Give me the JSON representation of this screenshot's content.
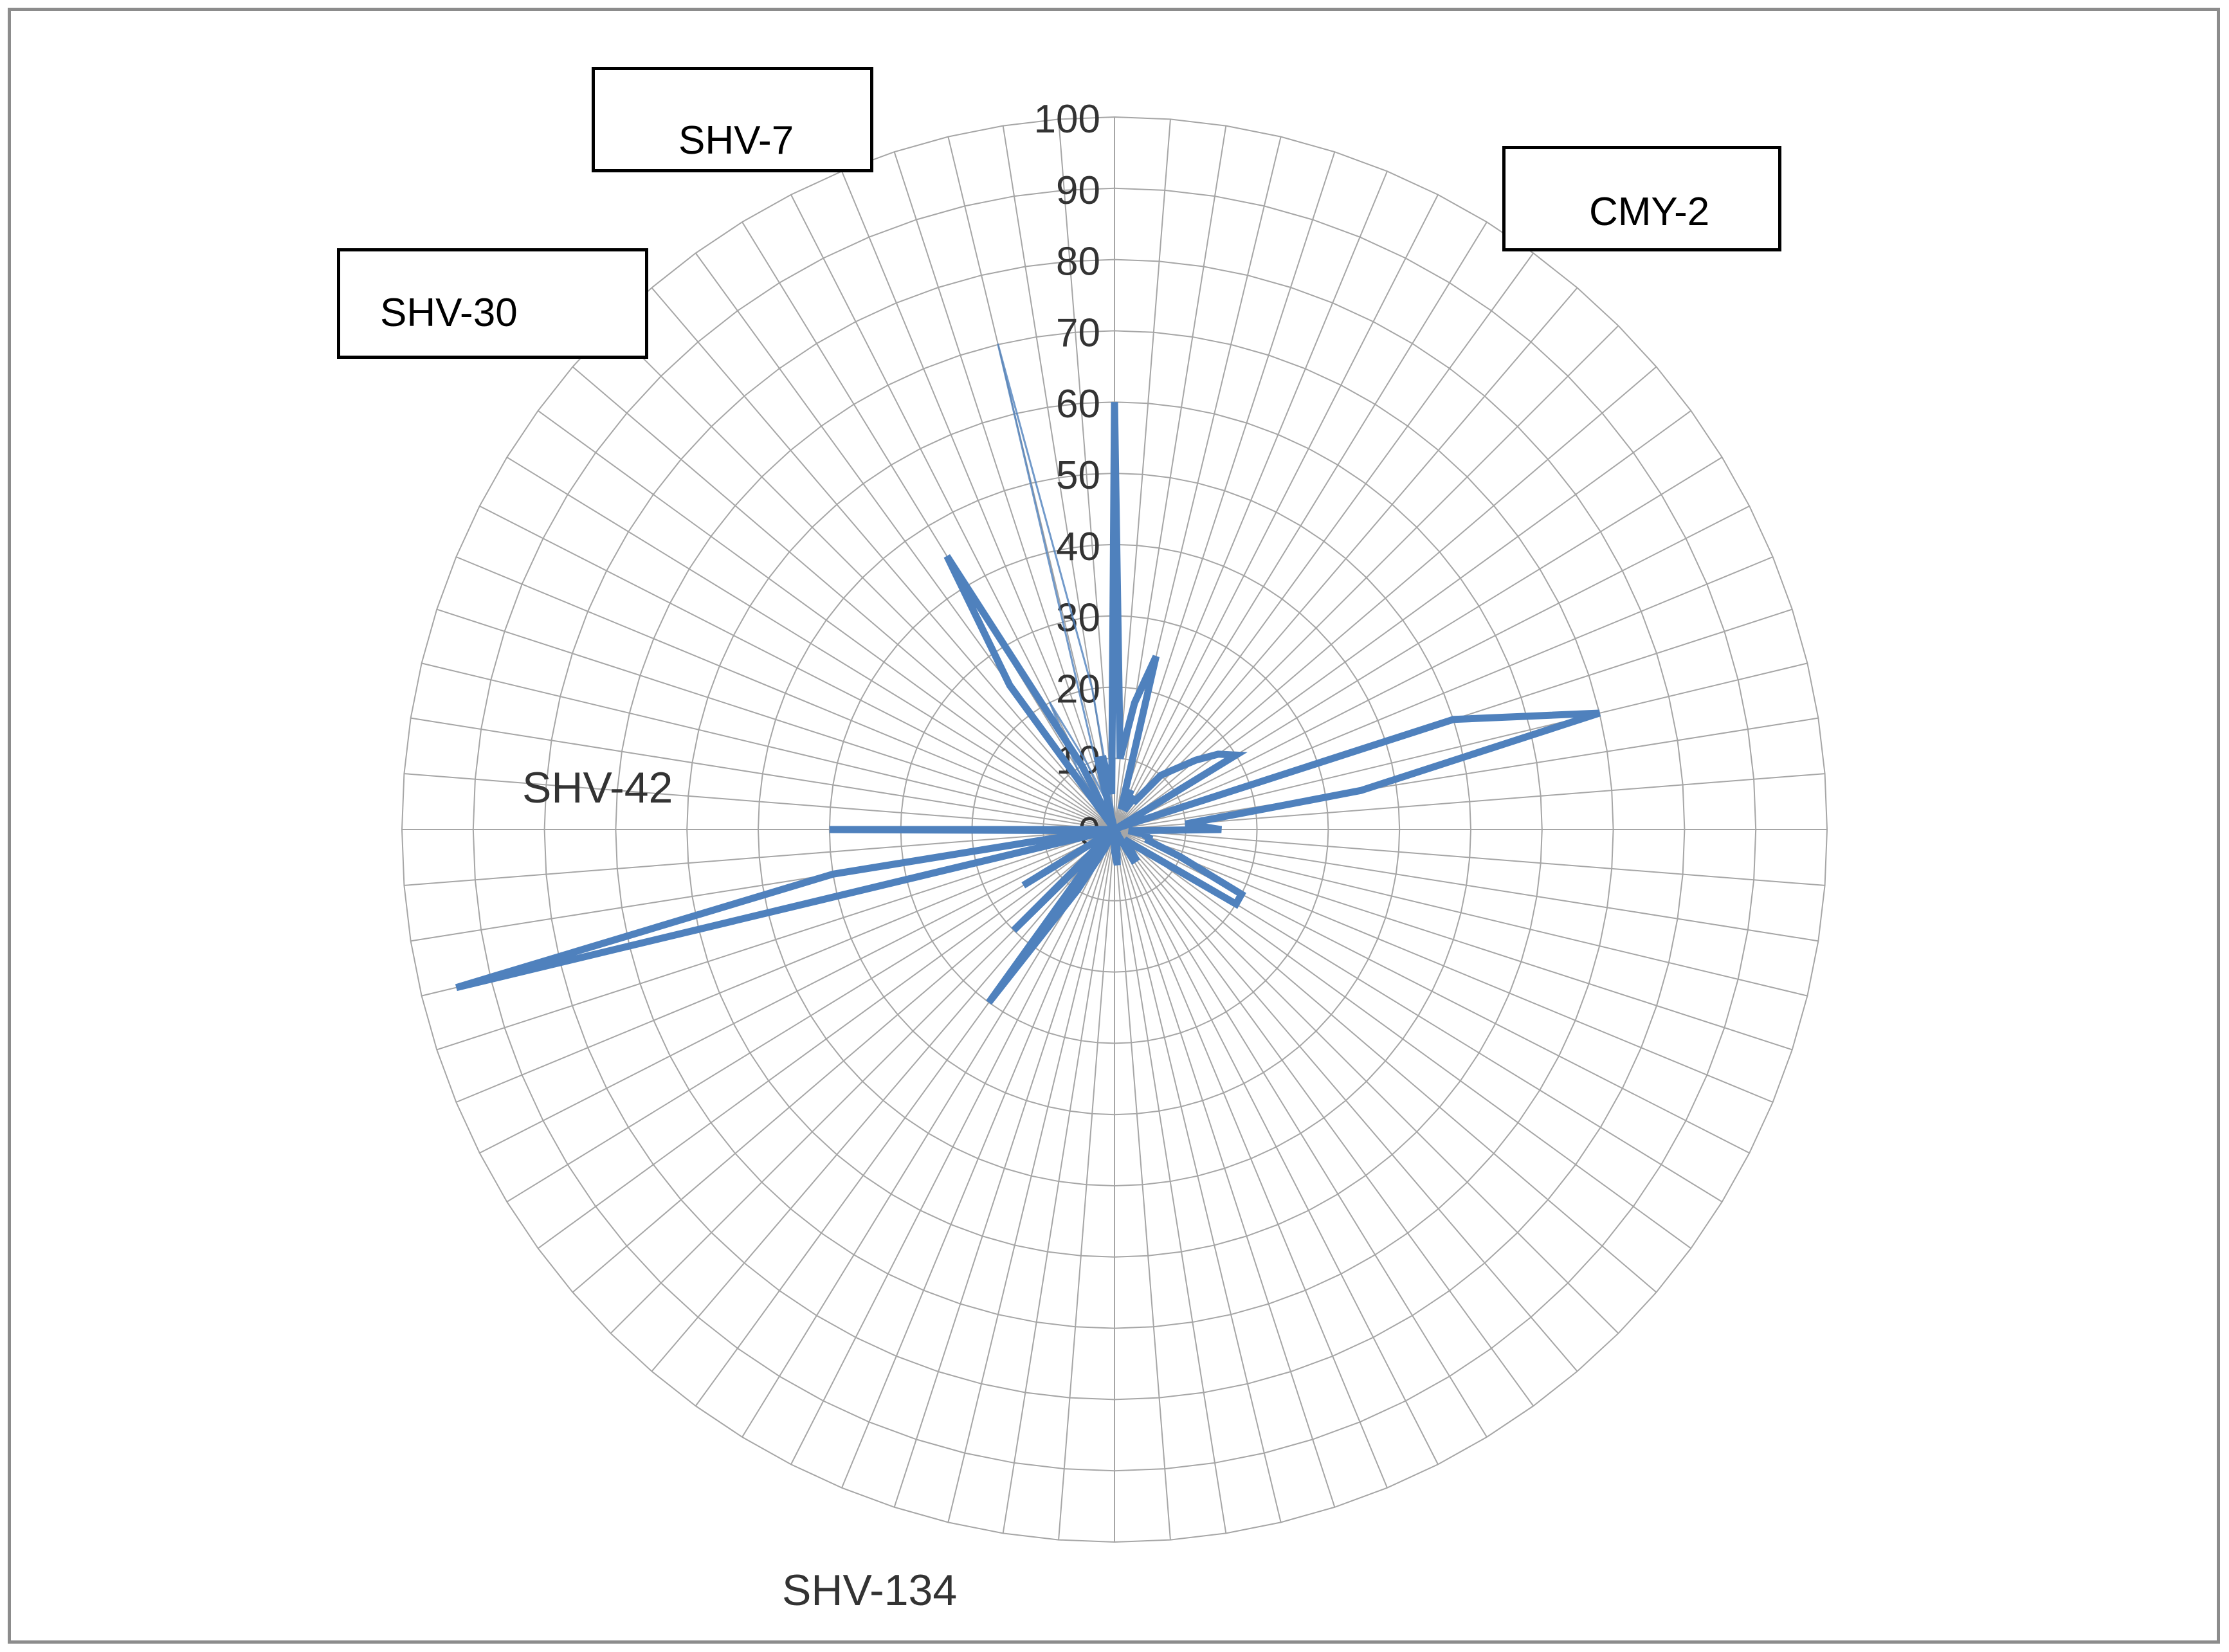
{
  "chart_data": {
    "type": "radar",
    "title": "",
    "r_axis": {
      "min": 0,
      "max": 100,
      "step": 10,
      "tick_labels": [
        "0",
        "10",
        "20",
        "30",
        "40",
        "50",
        "60",
        "70",
        "80",
        "90",
        "100"
      ]
    },
    "category_count": 80,
    "grid": true,
    "series": [
      {
        "color": "#4f81bd",
        "values": [
          60,
          10,
          18,
          25,
          3,
          6,
          3,
          5,
          5,
          10,
          12,
          15,
          18,
          20,
          0,
          1,
          50,
          70,
          35,
          10,
          15,
          2,
          4,
          5,
          5,
          10,
          20,
          20,
          5,
          3,
          2,
          3,
          5,
          5,
          0,
          0,
          0,
          0,
          2,
          5,
          3,
          0,
          0,
          0,
          1,
          0,
          3,
          10,
          30,
          2,
          20,
          0,
          0,
          15,
          0,
          0,
          0,
          95,
          40,
          2,
          40,
          0,
          0,
          0,
          0,
          0,
          0,
          0,
          0,
          0,
          0,
          0,
          25,
          45,
          10,
          0,
          0,
          10,
          10,
          5
        ],
        "thin_values": [
          0,
          0,
          0,
          0,
          0,
          0,
          0,
          0,
          0,
          0,
          0,
          0,
          0,
          0,
          0,
          0,
          0,
          0,
          0,
          0,
          0,
          0,
          0,
          0,
          0,
          0,
          0,
          0,
          0,
          0,
          0,
          0,
          0,
          0,
          0,
          0,
          0,
          0,
          0,
          0,
          0,
          0,
          0,
          0,
          0,
          0,
          0,
          0,
          0,
          0,
          0,
          0,
          0,
          0,
          0,
          0,
          0,
          0,
          0,
          0,
          0,
          0,
          0,
          0,
          0,
          0,
          0,
          0,
          0,
          0,
          0,
          0,
          3,
          10,
          20,
          10,
          5,
          70,
          20,
          3
        ]
      }
    ],
    "annotations": [
      {
        "id": "shv7",
        "text": "SHV-7",
        "boxed": true
      },
      {
        "id": "cmy2",
        "text": "CMY-2",
        "boxed": true
      },
      {
        "id": "shv30",
        "text": "SHV-30",
        "boxed": true
      },
      {
        "id": "shv42",
        "text": "SHV-42",
        "boxed": false
      },
      {
        "id": "shv134",
        "text": "SHV-134",
        "boxed": false
      }
    ]
  }
}
